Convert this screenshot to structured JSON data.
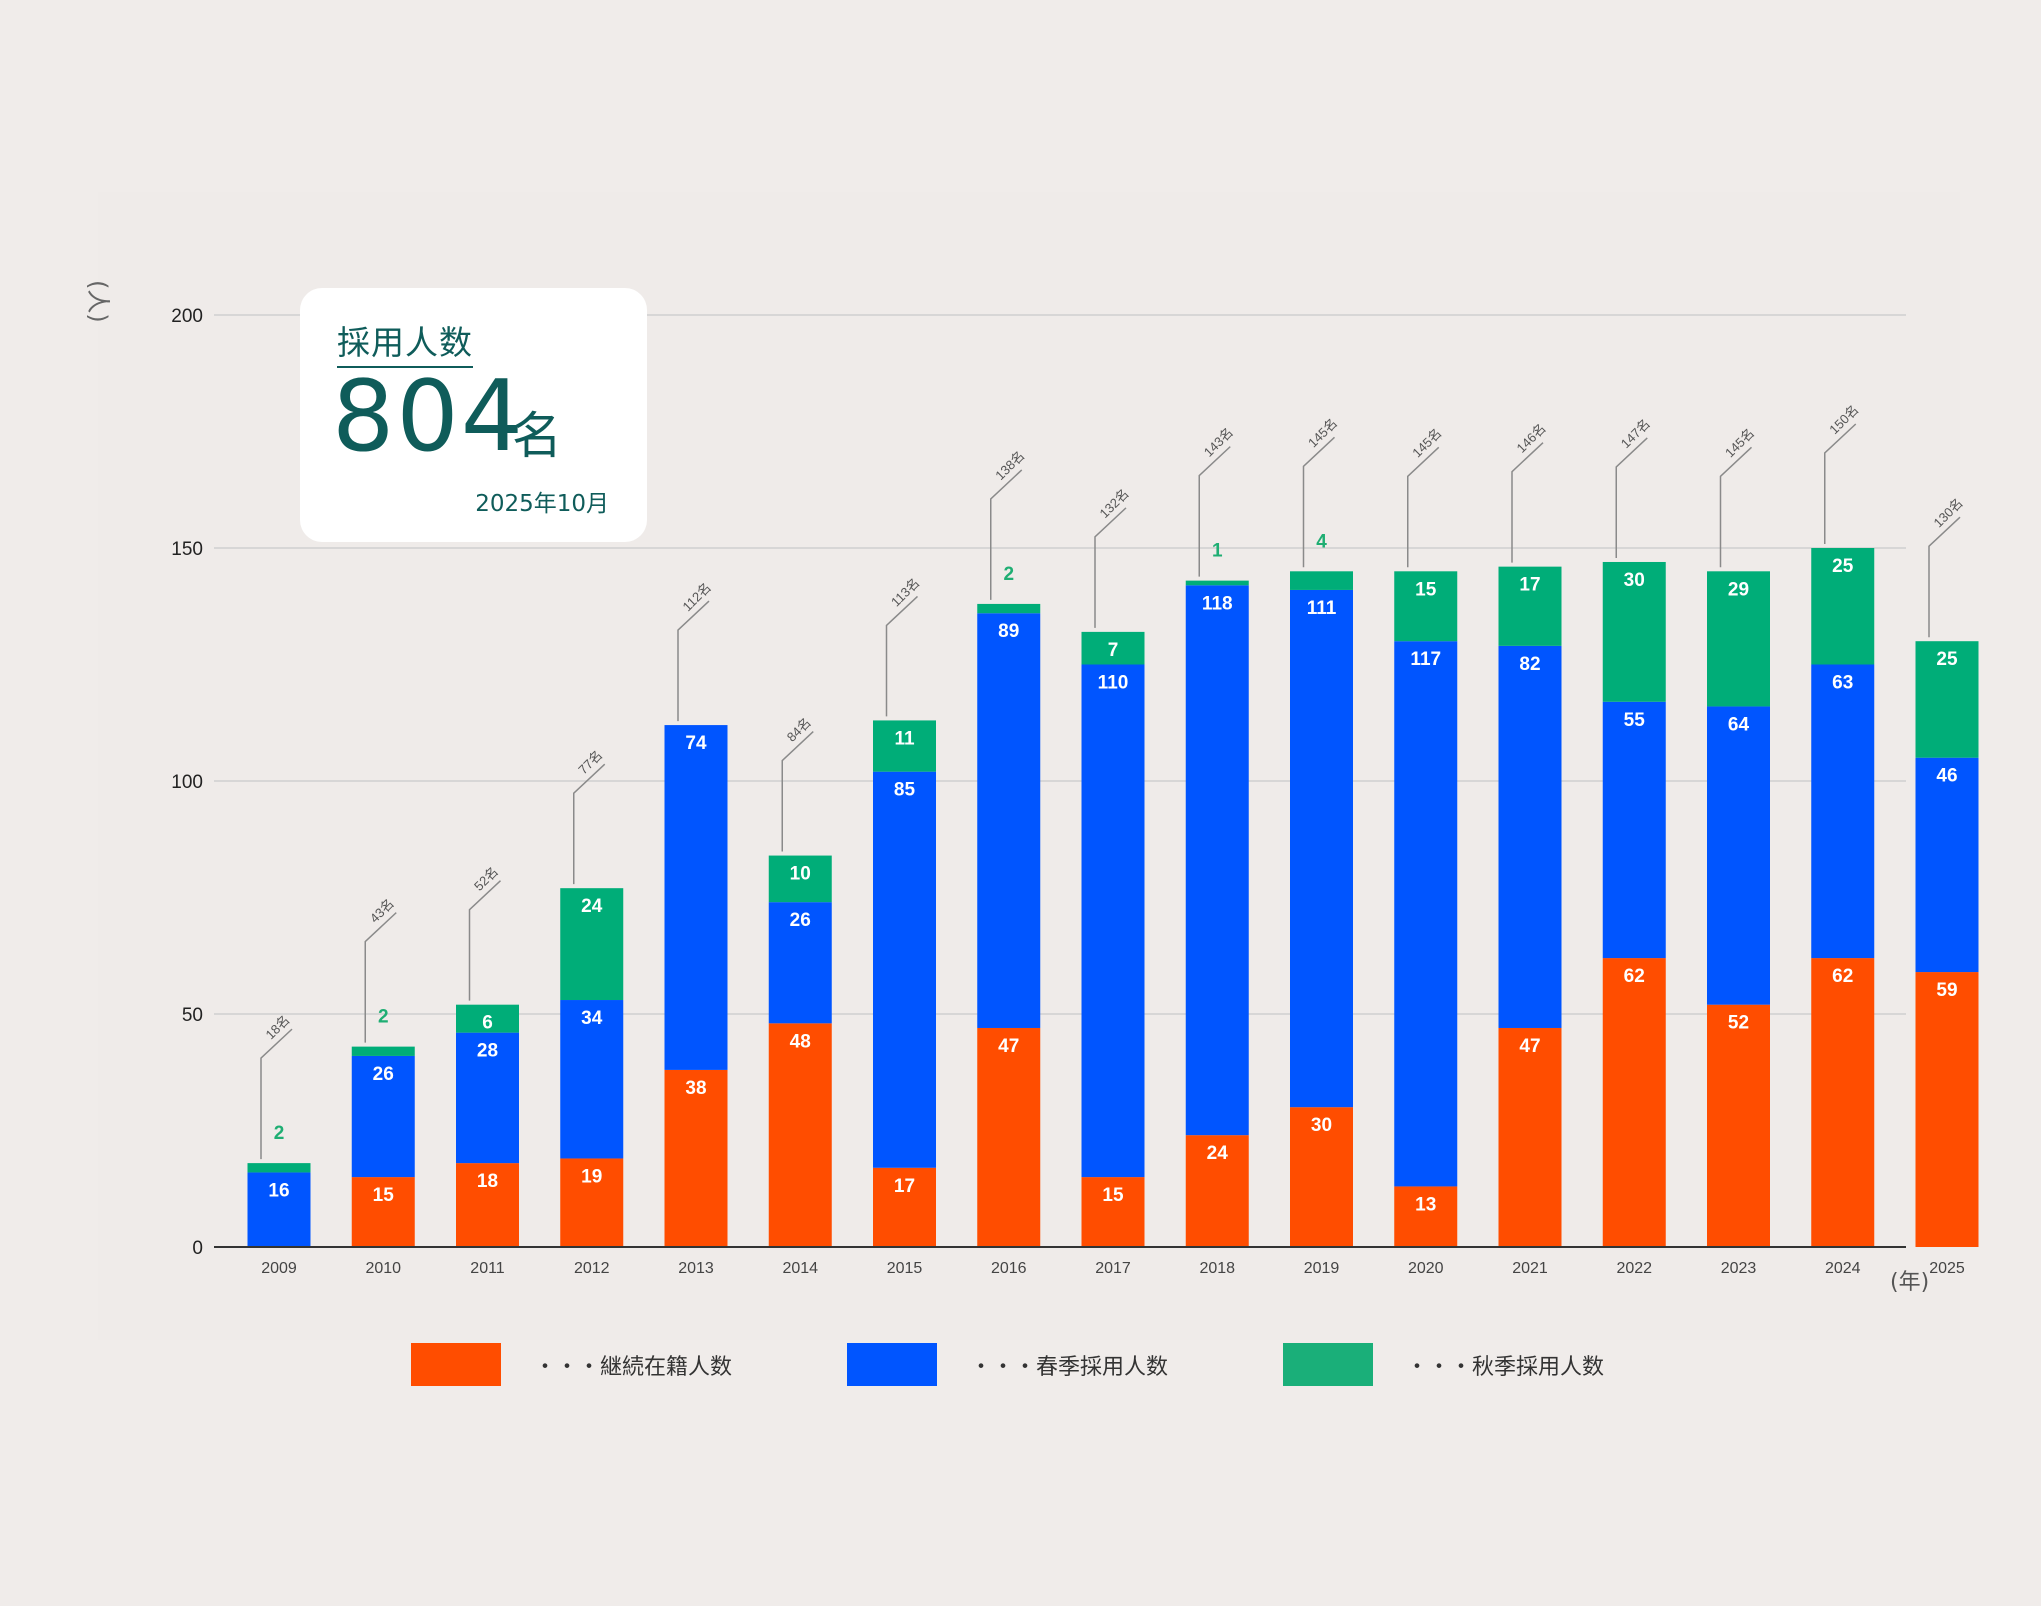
{
  "summary": {
    "label": "採用人数",
    "value": "804",
    "unit": "名",
    "date": "2025年10月"
  },
  "y_unit_label": "(人)",
  "x_unit_label": "(年)",
  "colors": {
    "continuing": "#ff4d00",
    "spring": "#0055ff",
    "autumn": "#00ad78",
    "autumn_label": "#1fae73",
    "grid": "#cfcfcf",
    "axis": "#333333",
    "leader": "#8a8a8a"
  },
  "chart_data": {
    "type": "bar",
    "stacked": true,
    "categories": [
      "2009",
      "2010",
      "2011",
      "2012",
      "2013",
      "2014",
      "2015",
      "2016",
      "2017",
      "2018",
      "2019",
      "2020",
      "2021",
      "2022",
      "2023",
      "2024",
      "2025"
    ],
    "series": [
      {
        "name": "・・・継続在籍人数",
        "key": "continuing",
        "values": [
          0,
          15,
          18,
          19,
          38,
          48,
          17,
          47,
          15,
          24,
          30,
          13,
          47,
          62,
          52,
          62,
          59
        ]
      },
      {
        "name": "・・・春季採用人数",
        "key": "spring",
        "values": [
          16,
          26,
          28,
          34,
          74,
          26,
          85,
          89,
          110,
          118,
          111,
          117,
          82,
          55,
          64,
          63,
          46
        ]
      },
      {
        "name": "・・・秋季採用人数",
        "key": "autumn",
        "values": [
          2,
          2,
          6,
          24,
          0,
          10,
          11,
          2,
          7,
          1,
          4,
          15,
          17,
          30,
          29,
          25,
          25
        ]
      }
    ],
    "totals": [
      "18名",
      "43名",
      "52名",
      "77名",
      "112名",
      "84名",
      "113名",
      "138名",
      "132名",
      "143名",
      "145名",
      "145名",
      "146名",
      "147名",
      "145名",
      "150名",
      "130名"
    ],
    "y_ticks": [
      "0",
      "50",
      "100",
      "150",
      "200"
    ],
    "ylim": [
      0,
      200
    ],
    "grid": true,
    "legend_position": "bottom"
  }
}
